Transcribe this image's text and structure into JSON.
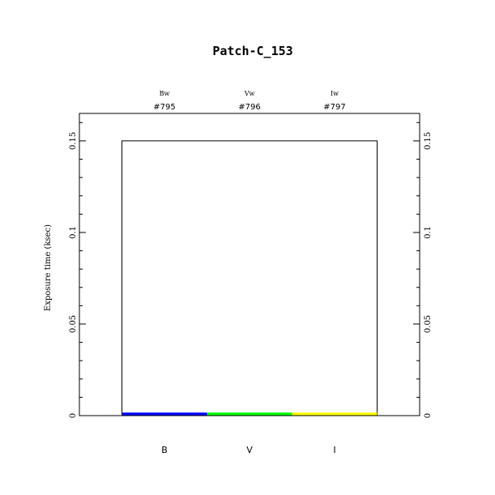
{
  "chart_data": {
    "type": "bar",
    "title": "Patch-C_153",
    "xlabel": "",
    "ylabel": "Exposure time (ksec)",
    "categories": [
      "B",
      "V",
      "I"
    ],
    "top_labels": [
      {
        "filter": "Bw",
        "id": "#795"
      },
      {
        "filter": "Vw",
        "id": "#796"
      },
      {
        "filter": "Iw",
        "id": "#797"
      }
    ],
    "x_positions": [
      1,
      2,
      3
    ],
    "xlim": [
      0,
      4
    ],
    "ylim": [
      0,
      0.165
    ],
    "yticks": [
      0,
      0.05,
      0.1,
      0.15
    ],
    "ytick_labels": [
      "0",
      "0.05",
      "0.1",
      "0.15"
    ],
    "yminor_step": 0.01,
    "grid": false,
    "series": [
      {
        "values": [
          0.15,
          0.15,
          0.15
        ],
        "color": "#000000"
      },
      {
        "values": [
          0.001,
          0.001,
          0.001
        ],
        "colors": [
          "#0000ff",
          "#00ff00",
          "#ffff00"
        ]
      }
    ]
  }
}
